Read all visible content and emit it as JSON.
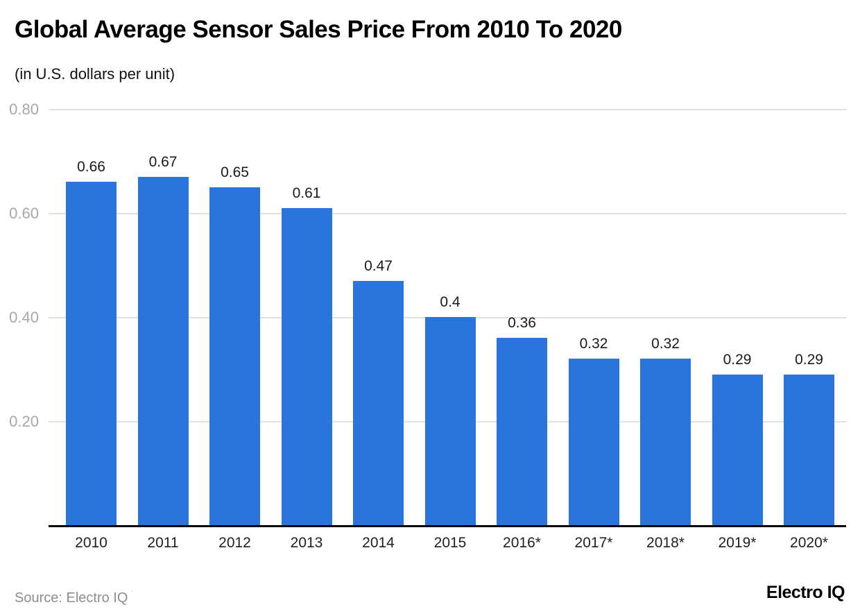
{
  "header": {
    "title": "Global Average Sensor Sales Price From 2010 To 2020",
    "subtitle": "(in U.S. dollars per unit)"
  },
  "footer": {
    "source_text": "Source: Electro IQ",
    "source_suffix_mark": "´",
    "brand_logo_text": "Electro IQ"
  },
  "chart_data": {
    "type": "bar",
    "title": "Global Average Sensor Sales Price From 2010 To 2020",
    "subtitle": "(in U.S. dollars per unit)",
    "categories": [
      "2010",
      "2011",
      "2012",
      "2013",
      "2014",
      "2015",
      "2016*",
      "2017*",
      "2018*",
      "2019*",
      "2020*"
    ],
    "values": [
      0.66,
      0.67,
      0.65,
      0.61,
      0.47,
      0.4,
      0.36,
      0.32,
      0.32,
      0.29,
      0.29
    ],
    "value_labels": [
      "0.66",
      "0.67",
      "0.65",
      "0.61",
      "0.47",
      "0.4",
      "0.36",
      "0.32",
      "0.32",
      "0.29",
      "0.29"
    ],
    "xlabel": "",
    "ylabel": "",
    "ylim": [
      0,
      0.8
    ],
    "y_ticks": [
      {
        "value": 0.8,
        "label": "0.80"
      },
      {
        "value": 0.6,
        "label": "0.60"
      },
      {
        "value": 0.4,
        "label": "0.40"
      },
      {
        "value": 0.2,
        "label": "0.20"
      }
    ],
    "grid": true,
    "legend": false,
    "colors": {
      "bar": "#2a75dc",
      "grid_line": "#e0e0e0",
      "axis_line": "#000000",
      "y_tick_label": "#a8a8a8",
      "x_tick_label": "#1f1f1f",
      "value_label": "#1a1a1a"
    }
  }
}
